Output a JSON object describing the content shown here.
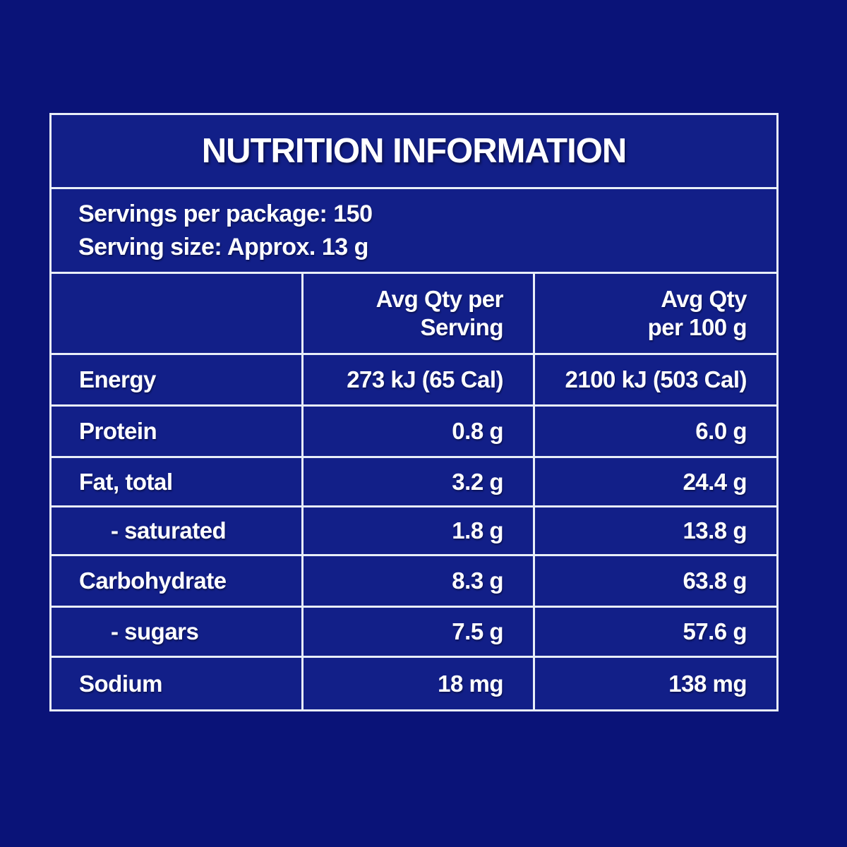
{
  "title": "NUTRITION INFORMATION",
  "serving_info": {
    "servings_per_package": "Servings per package: 150",
    "serving_size": "Serving size: Approx. 13 g"
  },
  "columns": {
    "nutrient_header": "",
    "per_serving_line1": "Avg Qty per",
    "per_serving_line2": "Serving",
    "per_100g_line1": "Avg Qty",
    "per_100g_line2": "per 100 g"
  },
  "rows": [
    {
      "nutrient": "Energy",
      "per_serving": "273 kJ (65 Cal)",
      "per_100g": "2100 kJ (503 Cal)",
      "indent": false
    },
    {
      "nutrient": "Protein",
      "per_serving": "0.8 g",
      "per_100g": "6.0 g",
      "indent": false
    },
    {
      "nutrient": "Fat, total",
      "per_serving": "3.2 g",
      "per_100g": "24.4 g",
      "indent": false
    },
    {
      "nutrient": "- saturated",
      "per_serving": "1.8 g",
      "per_100g": "13.8 g",
      "indent": true
    },
    {
      "nutrient": "Carbohydrate",
      "per_serving": "8.3 g",
      "per_100g": "63.8 g",
      "indent": false
    },
    {
      "nutrient": "- sugars",
      "per_serving": "7.5 g",
      "per_100g": "57.6 g",
      "indent": true
    },
    {
      "nutrient": "Sodium",
      "per_serving": "18 mg",
      "per_100g": "138 mg",
      "indent": false
    }
  ],
  "colors": {
    "page_background": "#0a1378",
    "cell_background": "#121f88",
    "grid_line": "#e8eef8",
    "text": "#ffffff"
  }
}
